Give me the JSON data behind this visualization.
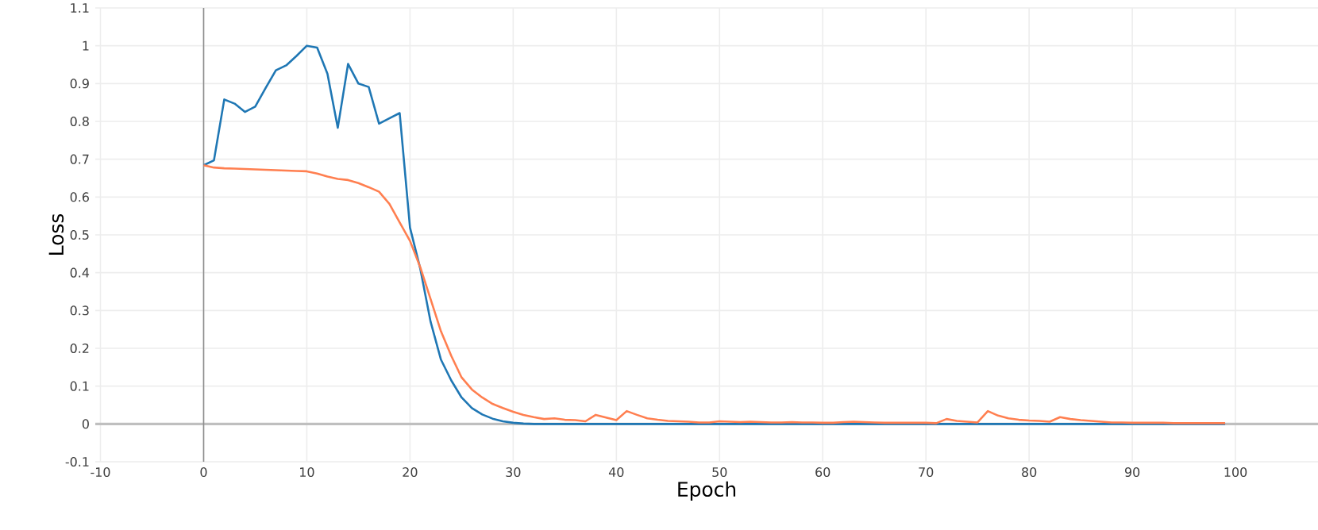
{
  "chart_data": {
    "type": "line",
    "xlabel": "Epoch",
    "ylabel": "Loss",
    "x": [
      0,
      1,
      2,
      3,
      4,
      5,
      6,
      7,
      8,
      9,
      10,
      11,
      12,
      13,
      14,
      15,
      16,
      17,
      18,
      19,
      20,
      21,
      22,
      23,
      24,
      25,
      26,
      27,
      28,
      29,
      30,
      31,
      32,
      33,
      34,
      35,
      36,
      37,
      38,
      39,
      40,
      41,
      42,
      43,
      44,
      45,
      46,
      47,
      48,
      49,
      50,
      51,
      52,
      53,
      54,
      55,
      56,
      57,
      58,
      59,
      60,
      61,
      62,
      63,
      64,
      65,
      66,
      67,
      68,
      69,
      70,
      71,
      72,
      73,
      74,
      75,
      76,
      77,
      78,
      79,
      80,
      81,
      82,
      83,
      84,
      85,
      86,
      87,
      88,
      89,
      90,
      91,
      92,
      93,
      94,
      95,
      96,
      97,
      98,
      99
    ],
    "series": [
      {
        "color": "#1f77b4",
        "values": [
          0.684,
          0.697,
          0.858,
          0.847,
          0.825,
          0.839,
          0.888,
          0.935,
          0.948,
          0.973,
          1.0,
          0.995,
          0.926,
          0.783,
          0.952,
          0.9,
          0.891,
          0.794,
          0.808,
          0.822,
          0.519,
          0.41,
          0.27,
          0.17,
          0.115,
          0.07,
          0.042,
          0.025,
          0.014,
          0.007,
          0.003,
          0.001,
          0,
          0,
          0,
          0,
          0,
          0,
          0,
          0,
          0,
          0,
          0,
          0,
          0,
          0,
          0,
          0,
          0,
          0,
          0,
          0,
          0,
          0,
          0,
          0,
          0,
          0,
          0,
          0,
          0,
          0,
          0,
          0,
          0,
          0,
          0,
          0,
          0,
          0,
          0,
          0,
          0,
          0,
          0,
          0,
          0,
          0,
          0,
          0,
          0,
          0,
          0,
          0,
          0,
          0,
          0,
          0,
          0,
          0,
          0,
          0,
          0,
          0,
          0,
          0,
          0,
          0,
          0,
          0
        ]
      },
      {
        "color": "#ff7f50",
        "values": [
          0.684,
          0.678,
          0.676,
          0.675,
          0.674,
          0.673,
          0.672,
          0.671,
          0.67,
          0.669,
          0.668,
          0.662,
          0.654,
          0.648,
          0.645,
          0.637,
          0.626,
          0.614,
          0.582,
          0.533,
          0.484,
          0.414,
          0.33,
          0.245,
          0.18,
          0.123,
          0.091,
          0.07,
          0.053,
          0.042,
          0.032,
          0.024,
          0.018,
          0.013,
          0.015,
          0.011,
          0.01,
          0.007,
          0.024,
          0.017,
          0.01,
          0.034,
          0.024,
          0.015,
          0.011,
          0.008,
          0.007,
          0.006,
          0.004,
          0.004,
          0.007,
          0.006,
          0.005,
          0.006,
          0.005,
          0.004,
          0.004,
          0.005,
          0.004,
          0.004,
          0.003,
          0.003,
          0.005,
          0.006,
          0.005,
          0.004,
          0.003,
          0.003,
          0.003,
          0.003,
          0.003,
          0.002,
          0.013,
          0.008,
          0.006,
          0.004,
          0.034,
          0.022,
          0.015,
          0.011,
          0.009,
          0.008,
          0.006,
          0.018,
          0.013,
          0.01,
          0.008,
          0.006,
          0.004,
          0.004,
          0.003,
          0.003,
          0.003,
          0.003,
          0.002,
          0.002,
          0.002,
          0.002,
          0.002,
          0.002
        ]
      }
    ],
    "xlim": [
      -10.5,
      108
    ],
    "ylim": [
      -0.1,
      1.1
    ],
    "xticks": [
      -10,
      0,
      10,
      20,
      30,
      40,
      50,
      60,
      70,
      80,
      90,
      100
    ],
    "yticks": [
      -0.1,
      0,
      0.1,
      0.2,
      0.3,
      0.4,
      0.5,
      0.6,
      0.7,
      0.8,
      0.9,
      1,
      1.1
    ],
    "grid": true,
    "marker": "none",
    "line_style": "solid"
  }
}
